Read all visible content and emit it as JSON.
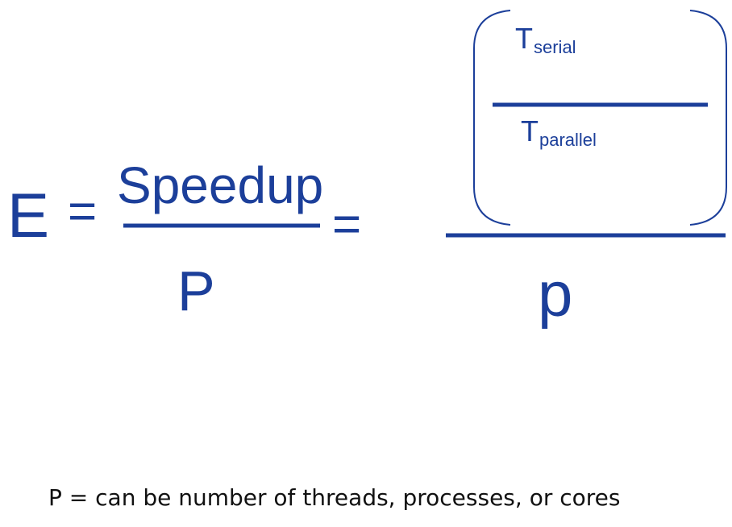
{
  "formula": {
    "lhs": "E",
    "equals": "=",
    "numerator": "Speedup",
    "denominator": "P",
    "equals2": "=",
    "inner": {
      "numerator_symbol": "T",
      "numerator_subscript": "serial",
      "denominator_symbol": "T",
      "denominator_subscript": "parallel"
    },
    "outer_denominator": "p"
  },
  "note": "P = can be number of threads, processes, or cores",
  "colors": {
    "formula": "#1c3f9a",
    "note": "#111111"
  }
}
